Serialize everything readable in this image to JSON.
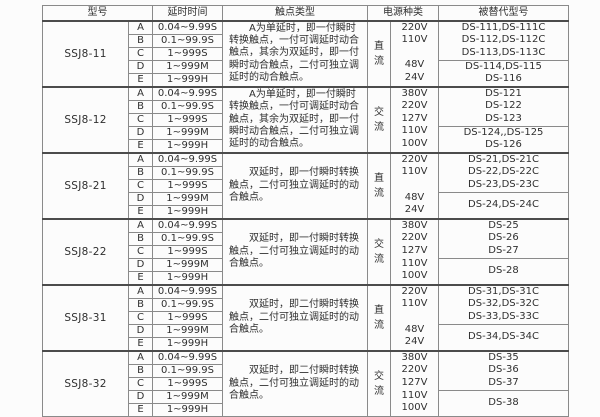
{
  "table": {
    "header": {
      "model": "型号",
      "delay": "延时时间",
      "contact": "触点类型",
      "power": "电源种类",
      "replaced": "被替代型号"
    },
    "groups": [
      {
        "model": "SSJ8-11",
        "rows": [
          {
            "letter": "A",
            "delay": "0.04~9.99S"
          },
          {
            "letter": "B",
            "delay": "0.1~99.9S"
          },
          {
            "letter": "C",
            "delay": "1~999S"
          },
          {
            "letter": "D",
            "delay": "1~999M"
          },
          {
            "letter": "E",
            "delay": "1~999H"
          }
        ],
        "contact": "A为单延时，即一付瞬时\n转换触点，一付可调延时动合\n触点，其余为双延时，即一付\n瞬时动合触点，二付可独立调\n延时的动合触点。",
        "power_kind": "直流",
        "voltages": [
          "220V",
          "110V",
          "",
          "48V",
          "24V"
        ],
        "replaced_top": [
          "DS-111,DS-111C",
          "DS-112,DS-112C",
          "DS-113,DS-113C"
        ],
        "replaced_bottom": [
          "DS-114,DS-115",
          "DS-116"
        ]
      },
      {
        "model": "SSJ8-12",
        "rows": [
          {
            "letter": "A",
            "delay": "0.04~9.99S"
          },
          {
            "letter": "B",
            "delay": "0.1~99.9S"
          },
          {
            "letter": "C",
            "delay": "1~999S"
          },
          {
            "letter": "D",
            "delay": "1~999M"
          },
          {
            "letter": "E",
            "delay": "1~999H"
          }
        ],
        "contact": "A为单延时，即一付瞬时\n转换触点，一付可调延时动合\n触点，其余为双延时，即一付\n瞬时动合触点，二付可独立调\n延时的动合触点。",
        "power_kind": "交流",
        "voltages": [
          "380V",
          "220V",
          "127V",
          "110V",
          "100V"
        ],
        "replaced_top": [
          "DS-121",
          "DS-122",
          "DS-123"
        ],
        "replaced_bottom": [
          "DS-124,,DS-125",
          "DS-126"
        ]
      },
      {
        "model": "SSJ8-21",
        "rows": [
          {
            "letter": "A",
            "delay": "0.04~9.99S"
          },
          {
            "letter": "B",
            "delay": "0.1~99.9S"
          },
          {
            "letter": "C",
            "delay": "1~999S"
          },
          {
            "letter": "D",
            "delay": "1~999M"
          },
          {
            "letter": "E",
            "delay": "1~999H"
          }
        ],
        "contact": "双延时，即一付瞬时转换\n触点，二付可独立调延时的动\n合触点。",
        "power_kind": "直流",
        "voltages": [
          "220V",
          "110V",
          "",
          "48V",
          "24V"
        ],
        "replaced_top": [
          "DS-21,DS-21C",
          "DS-22,DS-22C",
          "DS-23,DS-23C"
        ],
        "replaced_bottom": [
          "DS-24,DS-24C"
        ]
      },
      {
        "model": "SSJ8-22",
        "rows": [
          {
            "letter": "A",
            "delay": "0.04~9.99S"
          },
          {
            "letter": "B",
            "delay": "0.1~99.9S"
          },
          {
            "letter": "C",
            "delay": "1~999S"
          },
          {
            "letter": "D",
            "delay": "1~999M"
          },
          {
            "letter": "E",
            "delay": "1~999H"
          }
        ],
        "contact": "双延时，即一付瞬时转换\n触点，二付可独立调延时的动\n合触点。",
        "power_kind": "交流",
        "voltages": [
          "380V",
          "220V",
          "127V",
          "110V",
          "100V"
        ],
        "replaced_top": [
          "DS-25",
          "DS-26",
          "DS-27"
        ],
        "replaced_bottom": [
          "DS-28"
        ]
      },
      {
        "model": "SSJ8-31",
        "rows": [
          {
            "letter": "A",
            "delay": "0.04~9.99S"
          },
          {
            "letter": "B",
            "delay": "0.1~99.9S"
          },
          {
            "letter": "C",
            "delay": "1~999S"
          },
          {
            "letter": "D",
            "delay": "1~999M"
          },
          {
            "letter": "E",
            "delay": "1~999H"
          }
        ],
        "contact": "双延时，即二付瞬时转换\n触点，二付可独立调延时的动\n合触点。",
        "power_kind": "直流",
        "voltages": [
          "220V",
          "110V",
          "",
          "48V",
          "24V"
        ],
        "replaced_top": [
          "DS-31,DS-31C",
          "DS-32,DS-32C",
          "DS-33,DS-33C"
        ],
        "replaced_bottom": [
          "DS-34,DS-34C"
        ]
      },
      {
        "model": "SSJ8-32",
        "rows": [
          {
            "letter": "A",
            "delay": "0.04~9.99S"
          },
          {
            "letter": "B",
            "delay": "0.1~99.9S"
          },
          {
            "letter": "C",
            "delay": "1~999S"
          },
          {
            "letter": "D",
            "delay": "1~999M"
          },
          {
            "letter": "E",
            "delay": "1~999H"
          }
        ],
        "contact": "双延时，即二付瞬时转换\n触点，二付可独立调延时的动\n合触点。",
        "power_kind": "交流",
        "voltages": [
          "380V",
          "220V",
          "127V",
          "110V",
          "100V"
        ],
        "replaced_top": [
          "DS-35",
          "DS-36",
          "DS-37"
        ],
        "replaced_bottom": [
          "DS-38"
        ]
      }
    ]
  }
}
